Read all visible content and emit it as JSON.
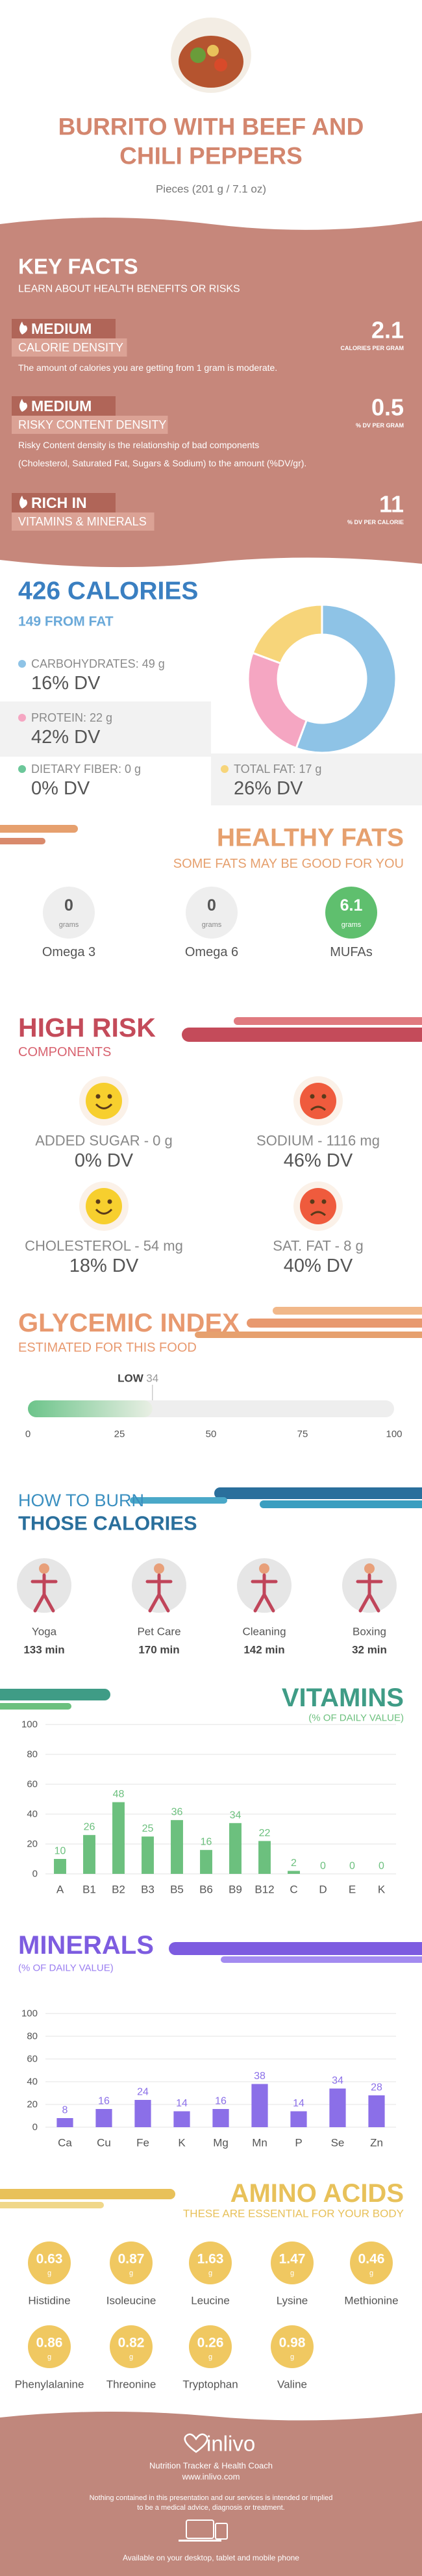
{
  "header": {
    "title_lines": [
      "BURRITO WITH BEEF AND",
      "CHILI PEPPERS"
    ],
    "serving": "Pieces (201 g / 7.1 oz)"
  },
  "key_facts": {
    "title": "KEY FACTS",
    "subtitle": "LEARN ABOUT HEALTH BENEFITS OR RISKS",
    "facts": [
      {
        "level": "MEDIUM",
        "name": "CALORIE DENSITY",
        "value": 2.1,
        "unit": "CALORIES PER GRAM",
        "note_lines": [
          "The amount of calories you are getting from 1 gram is moderate."
        ]
      },
      {
        "level": "MEDIUM",
        "name": "RISKY CONTENT DENSITY",
        "value": 0.5,
        "unit": "% DV PER GRAM",
        "note_lines": [
          "Risky Content density is the relationship of bad components",
          "(Cholesterol, Saturated Fat, Sugars & Sodium) to the amount (%DV/gr)."
        ]
      },
      {
        "level": "RICH IN",
        "name": "VITAMINS & MINERALS",
        "value": 11,
        "unit": "% DV PER CALORIE",
        "note_lines": []
      }
    ]
  },
  "calories": {
    "title": "426 CALORIES",
    "from_fat": "149 FROM FAT",
    "other_nutrients": [
      {
        "label": "DIETARY FIBER: 0 g",
        "dv": "0% DV",
        "color": "#6cc79a"
      }
    ]
  },
  "healthy_fats": {
    "title": "HEALTHY FATS",
    "subtitle": "SOME FATS MAY BE GOOD FOR YOU",
    "unit": "grams",
    "items": [
      {
        "value": 0,
        "name": "Omega 3"
      },
      {
        "value": 0,
        "name": "Omega 6"
      },
      {
        "value": 6.1,
        "name": "MUFAs"
      }
    ]
  },
  "high_risk": {
    "title": "HIGH RISK",
    "subtitle": "COMPONENTS",
    "items": [
      {
        "label": "ADDED SUGAR - 0 g",
        "dv": "0% DV",
        "good": true
      },
      {
        "label": "SODIUM - 1116 mg",
        "dv": "46% DV",
        "good": false
      },
      {
        "label": "CHOLESTEROL - 54 mg",
        "dv": "18% DV",
        "good": true
      },
      {
        "label": "SAT. FAT - 8 g",
        "dv": "40% DV",
        "good": false
      }
    ]
  },
  "burn": {
    "title_lines": [
      "HOW TO BURN",
      "THOSE CALORIES"
    ],
    "activities": [
      {
        "name": "Yoga",
        "time": "133 min"
      },
      {
        "name": "Pet Care",
        "time": "170 min"
      },
      {
        "name": "Cleaning",
        "time": "142 min"
      },
      {
        "name": "Boxing",
        "time": "32 min"
      }
    ]
  },
  "amino_acids": {
    "title": "AMINO ACIDS",
    "subtitle": "THESE ARE ESSENTIAL FOR YOUR BODY",
    "unit": "g",
    "items": [
      {
        "name": "Histidine",
        "value": 0.63
      },
      {
        "name": "Isoleucine",
        "value": 0.87
      },
      {
        "name": "Leucine",
        "value": 1.63
      },
      {
        "name": "Lysine",
        "value": 1.47
      },
      {
        "name": "Methionine",
        "value": 0.46
      },
      {
        "name": "Phenylalanine",
        "value": 0.86
      },
      {
        "name": "Threonine",
        "value": 0.82
      },
      {
        "name": "Tryptophan",
        "value": 0.26
      },
      {
        "name": "Valine",
        "value": 0.98
      }
    ]
  },
  "footer": {
    "brand": "inlivo",
    "tagline": "Nutrition Tracker & Health Coach",
    "url": "www.inlivo.com",
    "disclaimer_lines": [
      "Nothing contained in this presentation and our services is intended or implied",
      "to be a medical advice, diagnosis or treatment."
    ],
    "availability": "Available on your desktop, tablet and mobile phone"
  },
  "chart_data": [
    {
      "type": "pie",
      "values": [
        49,
        22,
        17
      ],
      "value_labels": [
        "CARBOHYDRATES: 49 g",
        "PROTEIN: 22 g",
        "TOTAL FAT: 17 g"
      ],
      "dv_labels": [
        "16% DV",
        "42% DV",
        "26% DV"
      ],
      "colors": [
        "#8ec3e6",
        "#f5a6c2",
        "#f7d57a"
      ]
    },
    {
      "type": "gauge",
      "title": "GLYCEMIC INDEX",
      "subtitle": "ESTIMATED FOR THIS FOOD",
      "value": 34,
      "level": "LOW",
      "xlim": [
        0,
        100
      ],
      "xticks": [
        0,
        25,
        50,
        75,
        100
      ],
      "color": "#6cc48a"
    },
    {
      "type": "bar",
      "title": "VITAMINS",
      "subtitle": "(% OF DAILY VALUE)",
      "categories": [
        "A",
        "B1",
        "B2",
        "B3",
        "B5",
        "B6",
        "B9",
        "B12",
        "C",
        "D",
        "E",
        "K"
      ],
      "values": [
        10,
        26,
        48,
        25,
        36,
        16,
        34,
        22,
        2,
        0,
        0,
        0
      ],
      "color": "#6cc07e",
      "ylim": [
        0,
        100
      ],
      "yticks": [
        0,
        20,
        40,
        60,
        80,
        100
      ],
      "grid": true
    },
    {
      "type": "bar",
      "title": "MINERALS",
      "subtitle": "(% OF DAILY VALUE)",
      "categories": [
        "Ca",
        "Cu",
        "Fe",
        "K",
        "Mg",
        "Mn",
        "P",
        "Se",
        "Zn"
      ],
      "values": [
        8,
        16,
        24,
        14,
        16,
        38,
        14,
        34,
        28
      ],
      "color": "#8b6fe8",
      "ylim": [
        0,
        100
      ],
      "yticks": [
        0,
        20,
        40,
        60,
        80,
        100
      ],
      "grid": true
    }
  ]
}
